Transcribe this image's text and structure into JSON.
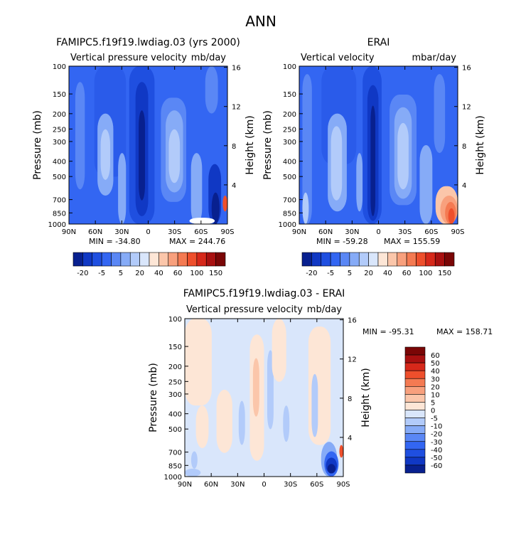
{
  "figure": {
    "title": "ANN"
  },
  "chart_data": [
    {
      "type": "heatmap",
      "title": "FAMIPC5.f19f19.lwdiag.03 (yrs 2000)",
      "subtitle_left": "Vertical pressure velocity",
      "subtitle_right": "mb/day",
      "ylabel": "Pressure (mb)",
      "ylabel_right": "Height (km)",
      "x_ticks": [
        "90N",
        "60N",
        "30N",
        "0",
        "30S",
        "60S",
        "90S"
      ],
      "y_ticks": [
        "100",
        "150",
        "200",
        "250",
        "300",
        "400",
        "500",
        "700",
        "850",
        "1000"
      ],
      "y_ticks_right": [
        "16",
        "12",
        "8",
        "4"
      ],
      "min_label": "MIN = -34.80",
      "max_label": "MAX = 244.76",
      "colorbar_orientation": "horizontal",
      "colorbar_labels": [
        "-20",
        "-5",
        "5",
        "20",
        "40",
        "60",
        "100",
        "150"
      ],
      "colorbar_colors": [
        "#08208f",
        "#1038c4",
        "#1f4fe0",
        "#3366f2",
        "#5a87f5",
        "#86abf7",
        "#b2cbfa",
        "#d9e6fb",
        "#fde6d6",
        "#fbc6aa",
        "#f8a07d",
        "#f47a52",
        "#ee4f2c",
        "#d6281a",
        "#a81010",
        "#7a0606"
      ],
      "regions": [
        {
          "x0": 0.0,
          "x1": 1.0,
          "y0": 0.0,
          "y1": 1.0,
          "color": "#3366f2"
        },
        {
          "x0": 0.04,
          "x1": 0.1,
          "y0": 0.1,
          "y1": 0.78,
          "color": "#5a87f5"
        },
        {
          "x0": 0.16,
          "x1": 0.36,
          "y0": 0.0,
          "y1": 0.7,
          "color": "#2a5bea"
        },
        {
          "x0": 0.18,
          "x1": 0.28,
          "y0": 0.3,
          "y1": 0.82,
          "color": "#86abf7"
        },
        {
          "x0": 0.2,
          "x1": 0.26,
          "y0": 0.4,
          "y1": 0.72,
          "color": "#b2cbfa"
        },
        {
          "x0": 0.31,
          "x1": 0.36,
          "y0": 0.55,
          "y1": 1.0,
          "color": "#86abf7"
        },
        {
          "x0": 0.38,
          "x1": 0.54,
          "y0": 0.0,
          "y1": 1.0,
          "color": "#1f4fe0"
        },
        {
          "x0": 0.42,
          "x1": 0.5,
          "y0": 0.1,
          "y1": 0.95,
          "color": "#1038c4"
        },
        {
          "x0": 0.44,
          "x1": 0.48,
          "y0": 0.28,
          "y1": 0.85,
          "color": "#08208f"
        },
        {
          "x0": 0.58,
          "x1": 0.74,
          "y0": 0.2,
          "y1": 0.86,
          "color": "#5a87f5"
        },
        {
          "x0": 0.61,
          "x1": 0.72,
          "y0": 0.28,
          "y1": 0.8,
          "color": "#86abf7"
        },
        {
          "x0": 0.63,
          "x1": 0.7,
          "y0": 0.4,
          "y1": 0.74,
          "color": "#b2cbfa"
        },
        {
          "x0": 0.77,
          "x1": 0.84,
          "y0": 0.55,
          "y1": 1.0,
          "color": "#86abf7"
        },
        {
          "x0": 0.86,
          "x1": 0.94,
          "y0": 0.0,
          "y1": 0.3,
          "color": "#5a87f5"
        },
        {
          "x0": 0.88,
          "x1": 0.96,
          "y0": 0.62,
          "y1": 1.0,
          "color": "#1038c4"
        },
        {
          "x0": 0.9,
          "x1": 0.95,
          "y0": 0.8,
          "y1": 1.0,
          "color": "#08208f"
        },
        {
          "x0": 0.76,
          "x1": 0.92,
          "y0": 0.96,
          "y1": 1.0,
          "color": "#ffffff"
        },
        {
          "x0": 0.97,
          "x1": 1.0,
          "y0": 0.82,
          "y1": 0.92,
          "color": "#ee4f2c"
        }
      ]
    },
    {
      "type": "heatmap",
      "title": "ERAI",
      "subtitle_left": "Vertical velocity",
      "subtitle_right": "mbar/day",
      "ylabel": "Pressure (mb)",
      "ylabel_right": "Height (km)",
      "x_ticks": [
        "90N",
        "60N",
        "30N",
        "0",
        "30S",
        "60S",
        "90S"
      ],
      "y_ticks": [
        "100",
        "150",
        "200",
        "250",
        "300",
        "400",
        "500",
        "700",
        "850",
        "1000"
      ],
      "y_ticks_right": [
        "16",
        "12",
        "8",
        "4"
      ],
      "min_label": "MIN = -59.28",
      "max_label": "MAX = 155.59",
      "colorbar_orientation": "horizontal",
      "colorbar_labels": [
        "-20",
        "-5",
        "5",
        "20",
        "40",
        "60",
        "100",
        "150"
      ],
      "colorbar_colors": [
        "#08208f",
        "#1038c4",
        "#1f4fe0",
        "#3366f2",
        "#5a87f5",
        "#86abf7",
        "#b2cbfa",
        "#d9e6fb",
        "#fde6d6",
        "#fbc6aa",
        "#f8a07d",
        "#f47a52",
        "#ee4f2c",
        "#d6281a",
        "#a81010",
        "#7a0606"
      ],
      "regions": [
        {
          "x0": 0.0,
          "x1": 1.0,
          "y0": 0.0,
          "y1": 1.0,
          "color": "#3366f2"
        },
        {
          "x0": 0.02,
          "x1": 0.08,
          "y0": 0.05,
          "y1": 1.0,
          "color": "#5a87f5"
        },
        {
          "x0": 0.02,
          "x1": 0.06,
          "y0": 0.8,
          "y1": 1.0,
          "color": "#b2cbfa"
        },
        {
          "x0": 0.14,
          "x1": 0.36,
          "y0": 0.0,
          "y1": 0.62,
          "color": "#2a5bea"
        },
        {
          "x0": 0.18,
          "x1": 0.3,
          "y0": 0.3,
          "y1": 0.92,
          "color": "#86abf7"
        },
        {
          "x0": 0.2,
          "x1": 0.27,
          "y0": 0.38,
          "y1": 0.85,
          "color": "#b2cbfa"
        },
        {
          "x0": 0.36,
          "x1": 0.4,
          "y0": 0.55,
          "y1": 0.92,
          "color": "#86abf7"
        },
        {
          "x0": 0.4,
          "x1": 0.52,
          "y0": 0.0,
          "y1": 1.0,
          "color": "#1f4fe0"
        },
        {
          "x0": 0.43,
          "x1": 0.5,
          "y0": 0.12,
          "y1": 0.98,
          "color": "#1038c4"
        },
        {
          "x0": 0.45,
          "x1": 0.48,
          "y0": 0.25,
          "y1": 0.95,
          "color": "#08208f"
        },
        {
          "x0": 0.57,
          "x1": 0.74,
          "y0": 0.18,
          "y1": 0.88,
          "color": "#5a87f5"
        },
        {
          "x0": 0.6,
          "x1": 0.71,
          "y0": 0.26,
          "y1": 0.84,
          "color": "#86abf7"
        },
        {
          "x0": 0.62,
          "x1": 0.69,
          "y0": 0.36,
          "y1": 0.78,
          "color": "#b2cbfa"
        },
        {
          "x0": 0.76,
          "x1": 0.84,
          "y0": 0.5,
          "y1": 1.0,
          "color": "#86abf7"
        },
        {
          "x0": 0.85,
          "x1": 0.92,
          "y0": 0.05,
          "y1": 0.55,
          "color": "#5a87f5"
        },
        {
          "x0": 0.86,
          "x1": 1.0,
          "y0": 0.76,
          "y1": 1.0,
          "color": "#fbc6aa"
        },
        {
          "x0": 0.89,
          "x1": 1.0,
          "y0": 0.82,
          "y1": 1.0,
          "color": "#f8a07d"
        },
        {
          "x0": 0.92,
          "x1": 0.99,
          "y0": 0.86,
          "y1": 1.0,
          "color": "#f47a52"
        },
        {
          "x0": 0.94,
          "x1": 0.98,
          "y0": 0.9,
          "y1": 1.0,
          "color": "#ee4f2c"
        }
      ]
    },
    {
      "type": "heatmap",
      "title": "FAMIPC5.f19f19.lwdiag.03 - ERAI",
      "subtitle_left": "Vertical pressure velocity",
      "subtitle_right": "mb/day",
      "ylabel": "Pressure (mb)",
      "ylabel_right": "Height (km)",
      "x_ticks": [
        "90N",
        "60N",
        "30N",
        "0",
        "30S",
        "60S",
        "90S"
      ],
      "y_ticks": [
        "100",
        "150",
        "200",
        "250",
        "300",
        "400",
        "500",
        "700",
        "850",
        "1000"
      ],
      "y_ticks_right": [
        "16",
        "12",
        "8",
        "4"
      ],
      "min_label": "MIN = -95.31",
      "max_label": "MAX = 158.71",
      "colorbar_orientation": "vertical",
      "colorbar_labels": [
        "60",
        "50",
        "40",
        "30",
        "20",
        "10",
        "5",
        "0",
        "-5",
        "-10",
        "-20",
        "-30",
        "-40",
        "-50",
        "-60"
      ],
      "colorbar_colors": [
        "#7a0606",
        "#a81010",
        "#d6281a",
        "#ee4f2c",
        "#f47a52",
        "#f8a07d",
        "#fbc6aa",
        "#fde6d6",
        "#d9e6fb",
        "#b2cbfa",
        "#86abf7",
        "#5a87f5",
        "#3366f2",
        "#1f4fe0",
        "#1038c4",
        "#08208f"
      ],
      "regions": [
        {
          "x0": 0.0,
          "x1": 1.0,
          "y0": 0.0,
          "y1": 1.0,
          "color": "#d9e6fb"
        },
        {
          "x0": 0.0,
          "x1": 0.17,
          "y0": 0.0,
          "y1": 0.55,
          "color": "#fde6d6"
        },
        {
          "x0": 0.07,
          "x1": 0.15,
          "y0": 0.55,
          "y1": 0.82,
          "color": "#fde6d6"
        },
        {
          "x0": 0.04,
          "x1": 0.08,
          "y0": 0.84,
          "y1": 0.95,
          "color": "#b2cbfa"
        },
        {
          "x0": 0.0,
          "x1": 0.1,
          "y0": 0.95,
          "y1": 1.0,
          "color": "#b2cbfa"
        },
        {
          "x0": 0.2,
          "x1": 0.3,
          "y0": 0.45,
          "y1": 0.85,
          "color": "#fde6d6"
        },
        {
          "x0": 0.34,
          "x1": 0.38,
          "y0": 0.52,
          "y1": 0.8,
          "color": "#b2cbfa"
        },
        {
          "x0": 0.41,
          "x1": 0.5,
          "y0": 0.1,
          "y1": 0.9,
          "color": "#fde6d6"
        },
        {
          "x0": 0.43,
          "x1": 0.47,
          "y0": 0.25,
          "y1": 0.62,
          "color": "#fbc6aa"
        },
        {
          "x0": 0.52,
          "x1": 0.56,
          "y0": 0.2,
          "y1": 0.7,
          "color": "#b2cbfa"
        },
        {
          "x0": 0.55,
          "x1": 0.64,
          "y0": 0.0,
          "y1": 0.4,
          "color": "#fde6d6"
        },
        {
          "x0": 0.62,
          "x1": 0.66,
          "y0": 0.55,
          "y1": 0.78,
          "color": "#b2cbfa"
        },
        {
          "x0": 0.78,
          "x1": 0.92,
          "y0": 0.05,
          "y1": 0.8,
          "color": "#fde6d6"
        },
        {
          "x0": 0.8,
          "x1": 0.84,
          "y0": 0.35,
          "y1": 0.75,
          "color": "#b2cbfa"
        },
        {
          "x0": 0.86,
          "x1": 0.96,
          "y0": 0.78,
          "y1": 1.0,
          "color": "#86abf7"
        },
        {
          "x0": 0.88,
          "x1": 0.97,
          "y0": 0.84,
          "y1": 1.0,
          "color": "#3366f2"
        },
        {
          "x0": 0.89,
          "x1": 0.96,
          "y0": 0.88,
          "y1": 0.98,
          "color": "#1038c4"
        },
        {
          "x0": 0.9,
          "x1": 0.95,
          "y0": 0.92,
          "y1": 0.98,
          "color": "#08208f"
        },
        {
          "x0": 0.975,
          "x1": 1.0,
          "y0": 0.8,
          "y1": 0.88,
          "color": "#ee4f2c"
        }
      ]
    }
  ]
}
